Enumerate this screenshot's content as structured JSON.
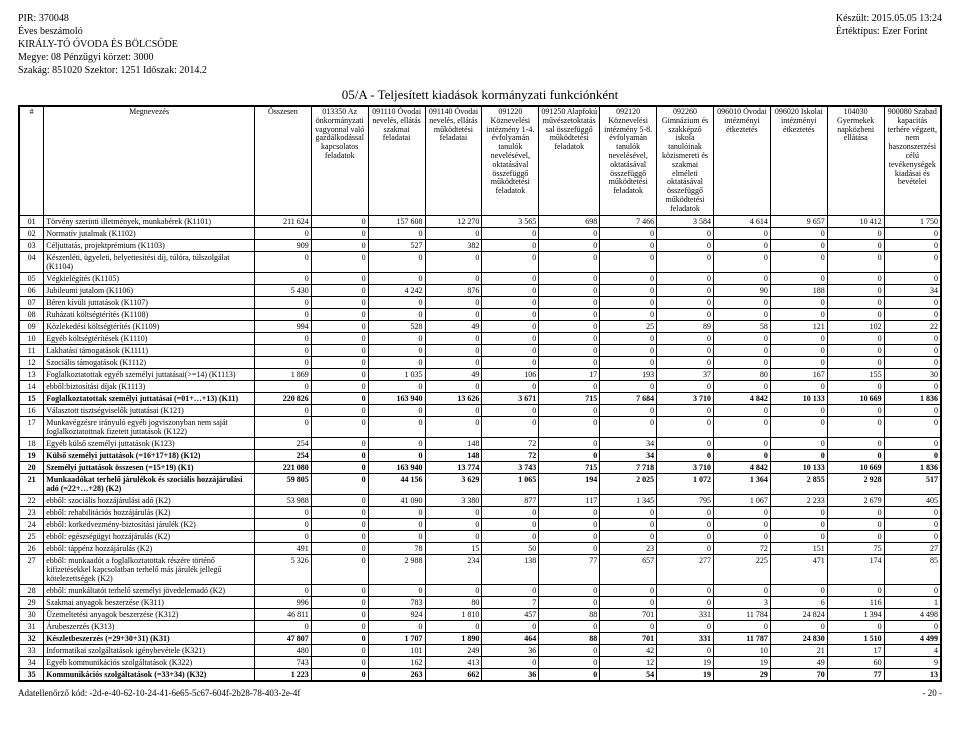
{
  "header": {
    "pir": "PIR: 370048",
    "report": "Éves beszámoló",
    "org": "KIRÁLY-TÓ ÓVODA ÉS BÖLCSŐDE",
    "megye": "Megye: 08 Pénzügyi körzet: 3000",
    "szakag": "Szakág: 851020 Szektor: 1251 Időszak: 2014.2",
    "keszult": "Készült: 2015.05.05 13:24",
    "ertek": "Értéktípus: Ezer Forint"
  },
  "title": "05/A - Teljesített kiadások kormányzati funkciónként",
  "columns": [
    "#",
    "Megnevezés",
    "Összesen",
    "013350 Az önkormányzati vagyonnal való gazdálkodással kapcsolatos feladatok",
    "091110 Óvodai nevelés, ellátás szakmai feladatai",
    "091140 Óvodai nevelés, ellátás működtetési feladatai",
    "091220 Köznevelési intézmény 1-4. évfolyamán tanulók nevelésével, oktatásával összefüggő működtetési feladatok",
    "091250 Alapfokú művészetoktatás sal összefüggő működtetési feladatok",
    "092120 Köznevelési intézmény 5-8. évfolyamán tanulók nevelésével, oktatásával összefüggő működtetési feladatok",
    "092260 Gimnázium és szakképző iskola tanulóinak közismereti és szakmai elméleti oktatásával összefüggő működtetési feladatok",
    "096010 Óvodai intézményi étkeztetés",
    "096020 Iskolai intézményi étkeztetés",
    "104030 Gyermekek napközbeni ellátása",
    "900080 Szabad kapacitás terhére végzett, nem haszonszerzési célú tevékenységek kiadásai és bevételei"
  ],
  "rows": [
    {
      "n": "01",
      "label": "Törvény szerinti illetmények, munkabérek   (K1101)",
      "v": [
        "211 624",
        "0",
        "157 608",
        "12 270",
        "3 565",
        "698",
        "7 466",
        "3 584",
        "4 614",
        "9 657",
        "10 412",
        "1 750"
      ]
    },
    {
      "n": "02",
      "label": "Normatív jutalmak   (K1102)",
      "v": [
        "0",
        "0",
        "0",
        "0",
        "0",
        "0",
        "0",
        "0",
        "0",
        "0",
        "0",
        "0"
      ]
    },
    {
      "n": "03",
      "label": "Céljuttatás, projektprémium   (K1103)",
      "v": [
        "909",
        "0",
        "527",
        "382",
        "0",
        "0",
        "0",
        "0",
        "0",
        "0",
        "0",
        "0"
      ]
    },
    {
      "n": "04",
      "label": "Készenléti, ügyeleti, helyettesítési díj, túlóra, túlszolgálat   (K1104)",
      "v": [
        "0",
        "0",
        "0",
        "0",
        "0",
        "0",
        "0",
        "0",
        "0",
        "0",
        "0",
        "0"
      ]
    },
    {
      "n": "05",
      "label": "Végkielégítés   (K1105)",
      "v": [
        "0",
        "0",
        "0",
        "0",
        "0",
        "0",
        "0",
        "0",
        "0",
        "0",
        "0",
        "0"
      ]
    },
    {
      "n": "06",
      "label": "Jubileumi jutalom   (K1106)",
      "v": [
        "5 430",
        "0",
        "4 242",
        "876",
        "0",
        "0",
        "0",
        "0",
        "90",
        "188",
        "0",
        "34"
      ]
    },
    {
      "n": "07",
      "label": "Béren kívüli juttatások   (K1107)",
      "v": [
        "0",
        "0",
        "0",
        "0",
        "0",
        "0",
        "0",
        "0",
        "0",
        "0",
        "0",
        "0"
      ]
    },
    {
      "n": "08",
      "label": "Ruházati költségtérítés   (K1108)",
      "v": [
        "0",
        "0",
        "0",
        "0",
        "0",
        "0",
        "0",
        "0",
        "0",
        "0",
        "0",
        "0"
      ]
    },
    {
      "n": "09",
      "label": "Közlekedési költségtérítés   (K1109)",
      "v": [
        "994",
        "0",
        "528",
        "49",
        "0",
        "0",
        "25",
        "89",
        "58",
        "121",
        "102",
        "22"
      ]
    },
    {
      "n": "10",
      "label": "Egyéb költségtérítések   (K1110)",
      "v": [
        "0",
        "0",
        "0",
        "0",
        "0",
        "0",
        "0",
        "0",
        "0",
        "0",
        "0",
        "0"
      ]
    },
    {
      "n": "11",
      "label": "Lakhatási támogatások   (K1111)",
      "v": [
        "0",
        "0",
        "0",
        "0",
        "0",
        "0",
        "0",
        "0",
        "0",
        "0",
        "0",
        "0"
      ]
    },
    {
      "n": "12",
      "label": "Szociális támogatások   (K1112)",
      "v": [
        "0",
        "0",
        "0",
        "0",
        "0",
        "0",
        "0",
        "0",
        "0",
        "0",
        "0",
        "0"
      ]
    },
    {
      "n": "13",
      "label": "Foglalkoztatottak egyéb személyi juttatásai(>=14)   (K1113)",
      "v": [
        "1 869",
        "0",
        "1 035",
        "49",
        "106",
        "17",
        "193",
        "37",
        "80",
        "167",
        "155",
        "30"
      ]
    },
    {
      "n": "14",
      "label": "ebből:biztosítási díjak   (K1113)",
      "v": [
        "0",
        "0",
        "0",
        "0",
        "0",
        "0",
        "0",
        "0",
        "0",
        "0",
        "0",
        "0"
      ]
    },
    {
      "n": "15",
      "label": "Foglalkoztatottak személyi juttatásai (=01+…+13)   (K11)",
      "v": [
        "220 826",
        "0",
        "163 940",
        "13 626",
        "3 671",
        "715",
        "7 684",
        "3 710",
        "4 842",
        "10 133",
        "10 669",
        "1 836"
      ],
      "bold": true
    },
    {
      "n": "16",
      "label": "Választott tisztségviselők juttatásai   (K121)",
      "v": [
        "0",
        "0",
        "0",
        "0",
        "0",
        "0",
        "0",
        "0",
        "0",
        "0",
        "0",
        "0"
      ]
    },
    {
      "n": "17",
      "label": "Munkavégzésre irányuló egyéb jogviszonyban nem saját foglalkoztatottnak fizetett juttatások   (K122)",
      "v": [
        "0",
        "0",
        "0",
        "0",
        "0",
        "0",
        "0",
        "0",
        "0",
        "0",
        "0",
        "0"
      ]
    },
    {
      "n": "18",
      "label": "Egyéb külső személyi juttatások   (K123)",
      "v": [
        "254",
        "0",
        "0",
        "148",
        "72",
        "0",
        "34",
        "0",
        "0",
        "0",
        "0",
        "0"
      ]
    },
    {
      "n": "19",
      "label": "Külső személyi juttatások (=16+17+18)   (K12)",
      "v": [
        "254",
        "0",
        "0",
        "148",
        "72",
        "0",
        "34",
        "0",
        "0",
        "0",
        "0",
        "0"
      ],
      "bold": true
    },
    {
      "n": "20",
      "label": "Személyi juttatások összesen (=15+19)   (K1)",
      "v": [
        "221 080",
        "0",
        "163 940",
        "13 774",
        "3 743",
        "715",
        "7 718",
        "3 710",
        "4 842",
        "10 133",
        "10 669",
        "1 836"
      ],
      "bold": true
    },
    {
      "n": "21",
      "label": "Munkaadókat terhelő járulékok és szociális hozzájárulási adó (=22+…+28)   (K2)",
      "v": [
        "59 805",
        "0",
        "44 156",
        "3 629",
        "1 065",
        "194",
        "2 025",
        "1 072",
        "1 364",
        "2 855",
        "2 928",
        "517"
      ],
      "bold": true
    },
    {
      "n": "22",
      "label": "ebből: szociális hozzájárulási adó   (K2)",
      "v": [
        "53 988",
        "0",
        "41 090",
        "3 380",
        "877",
        "117",
        "1 345",
        "795",
        "1 067",
        "2 233",
        "2 679",
        "405"
      ]
    },
    {
      "n": "23",
      "label": "ebből: rehabilitációs hozzájárulás   (K2)",
      "v": [
        "0",
        "0",
        "0",
        "0",
        "0",
        "0",
        "0",
        "0",
        "0",
        "0",
        "0",
        "0"
      ]
    },
    {
      "n": "24",
      "label": "ebből: korkedvezmény-biztosítási járulék   (K2)",
      "v": [
        "0",
        "0",
        "0",
        "0",
        "0",
        "0",
        "0",
        "0",
        "0",
        "0",
        "0",
        "0"
      ]
    },
    {
      "n": "25",
      "label": "ebből: egészségügyi hozzájárulás   (K2)",
      "v": [
        "0",
        "0",
        "0",
        "0",
        "0",
        "0",
        "0",
        "0",
        "0",
        "0",
        "0",
        "0"
      ]
    },
    {
      "n": "26",
      "label": "ebből: táppénz hozzájárulás   (K2)",
      "v": [
        "491",
        "0",
        "78",
        "15",
        "50",
        "0",
        "23",
        "0",
        "72",
        "151",
        "75",
        "27"
      ]
    },
    {
      "n": "27",
      "label": "ebből: munkaadót a foglalkoztatottak részére történő kifizetésekkel kapcsolatban terhelő más járulék jellegű kötelezettségek   (K2)",
      "v": [
        "5 326",
        "0",
        "2 988",
        "234",
        "138",
        "77",
        "657",
        "277",
        "225",
        "471",
        "174",
        "85"
      ]
    },
    {
      "n": "28",
      "label": "ebből: munkáltatót terhelő személyi jövedelemadó   (K2)",
      "v": [
        "0",
        "0",
        "0",
        "0",
        "0",
        "0",
        "0",
        "0",
        "0",
        "0",
        "0",
        "0"
      ]
    },
    {
      "n": "29",
      "label": "Szakmai anyagok beszerzése   (K311)",
      "v": [
        "996",
        "0",
        "783",
        "80",
        "7",
        "0",
        "0",
        "0",
        "3",
        "6",
        "116",
        "1"
      ]
    },
    {
      "n": "30",
      "label": "Üzemeltetési anyagok beszerzése   (K312)",
      "v": [
        "46 811",
        "0",
        "924",
        "1 810",
        "457",
        "88",
        "701",
        "331",
        "11 784",
        "24 824",
        "1 394",
        "4 498"
      ]
    },
    {
      "n": "31",
      "label": "Árubeszerzés   (K313)",
      "v": [
        "0",
        "0",
        "0",
        "0",
        "0",
        "0",
        "0",
        "0",
        "0",
        "0",
        "0",
        "0"
      ]
    },
    {
      "n": "32",
      "label": "Készletbeszerzés (=29+30+31)   (K31)",
      "v": [
        "47 807",
        "0",
        "1 707",
        "1 890",
        "464",
        "88",
        "701",
        "331",
        "11 787",
        "24 830",
        "1 510",
        "4 499"
      ],
      "bold": true
    },
    {
      "n": "33",
      "label": "Informatikai szolgáltatások igénybevétele   (K321)",
      "v": [
        "480",
        "0",
        "101",
        "249",
        "36",
        "0",
        "42",
        "0",
        "10",
        "21",
        "17",
        "4"
      ]
    },
    {
      "n": "34",
      "label": "Egyéb kommunikációs szolgáltatások   (K322)",
      "v": [
        "743",
        "0",
        "162",
        "413",
        "0",
        "0",
        "12",
        "19",
        "19",
        "49",
        "60",
        "9"
      ]
    },
    {
      "n": "35",
      "label": "Kommunikációs szolgáltatások (=33+34)   (K32)",
      "v": [
        "1 223",
        "0",
        "263",
        "662",
        "36",
        "0",
        "54",
        "19",
        "29",
        "70",
        "77",
        "13"
      ],
      "bold": true
    }
  ],
  "footer": {
    "left": "Adatellenőrző kód: -2d-e-40-62-10-24-41-6e65-5c67-604f-2b28-78-403-2e-4f",
    "page": "- 20 -"
  }
}
